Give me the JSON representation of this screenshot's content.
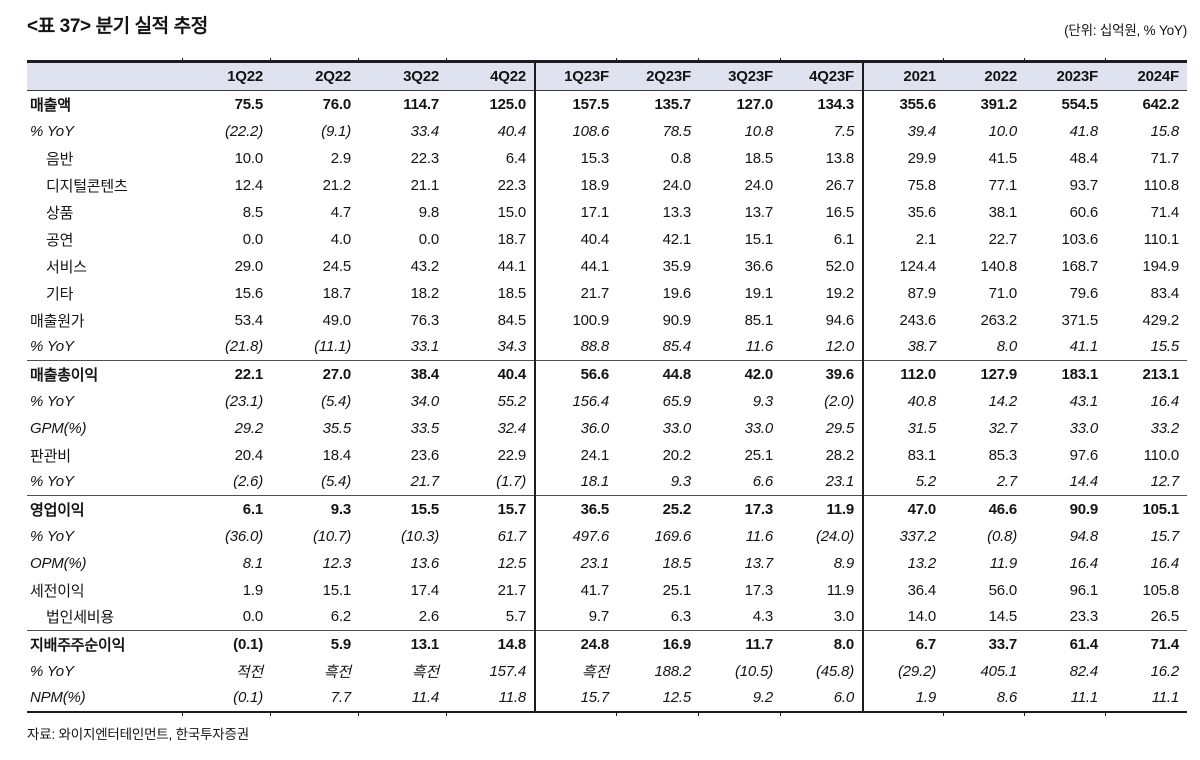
{
  "title": "<표 37> 분기 실적 추정",
  "unit_note": "(단위: 십억원, % YoY)",
  "source": "자료: 와이지엔터테인먼트, 한국투자증권",
  "colors": {
    "header_bg": "#dfe3f0",
    "rule_dark": "#1c1c1c",
    "rule_section": "#4f4f4f",
    "text": "#141414"
  },
  "table": {
    "columns": [
      "1Q22",
      "2Q22",
      "3Q22",
      "4Q22",
      "1Q23F",
      "2Q23F",
      "3Q23F",
      "4Q23F",
      "2021",
      "2022",
      "2023F",
      "2024F"
    ],
    "rows": [
      {
        "label": "매출액",
        "style": "bold",
        "section": false,
        "values": [
          "75.5",
          "76.0",
          "114.7",
          "125.0",
          "157.5",
          "135.7",
          "127.0",
          "134.3",
          "355.6",
          "391.2",
          "554.5",
          "642.2"
        ]
      },
      {
        "label": "% YoY",
        "style": "italic",
        "section": false,
        "values": [
          "(22.2)",
          "(9.1)",
          "33.4",
          "40.4",
          "108.6",
          "78.5",
          "10.8",
          "7.5",
          "39.4",
          "10.0",
          "41.8",
          "15.8"
        ]
      },
      {
        "label": "음반",
        "style": "sub",
        "section": false,
        "values": [
          "10.0",
          "2.9",
          "22.3",
          "6.4",
          "15.3",
          "0.8",
          "18.5",
          "13.8",
          "29.9",
          "41.5",
          "48.4",
          "71.7"
        ]
      },
      {
        "label": "디지털콘텐츠",
        "style": "sub",
        "section": false,
        "values": [
          "12.4",
          "21.2",
          "21.1",
          "22.3",
          "18.9",
          "24.0",
          "24.0",
          "26.7",
          "75.8",
          "77.1",
          "93.7",
          "110.8"
        ]
      },
      {
        "label": "상품",
        "style": "sub",
        "section": false,
        "values": [
          "8.5",
          "4.7",
          "9.8",
          "15.0",
          "17.1",
          "13.3",
          "13.7",
          "16.5",
          "35.6",
          "38.1",
          "60.6",
          "71.4"
        ]
      },
      {
        "label": "공연",
        "style": "sub",
        "section": false,
        "values": [
          "0.0",
          "4.0",
          "0.0",
          "18.7",
          "40.4",
          "42.1",
          "15.1",
          "6.1",
          "2.1",
          "22.7",
          "103.6",
          "110.1"
        ]
      },
      {
        "label": "서비스",
        "style": "sub",
        "section": false,
        "values": [
          "29.0",
          "24.5",
          "43.2",
          "44.1",
          "44.1",
          "35.9",
          "36.6",
          "52.0",
          "124.4",
          "140.8",
          "168.7",
          "194.9"
        ]
      },
      {
        "label": "기타",
        "style": "sub",
        "section": false,
        "values": [
          "15.6",
          "18.7",
          "18.2",
          "18.5",
          "21.7",
          "19.6",
          "19.1",
          "19.2",
          "87.9",
          "71.0",
          "79.6",
          "83.4"
        ]
      },
      {
        "label": "매출원가",
        "style": "normal",
        "section": false,
        "values": [
          "53.4",
          "49.0",
          "76.3",
          "84.5",
          "100.9",
          "90.9",
          "85.1",
          "94.6",
          "243.6",
          "263.2",
          "371.5",
          "429.2"
        ]
      },
      {
        "label": "% YoY",
        "style": "italic",
        "section": false,
        "values": [
          "(21.8)",
          "(11.1)",
          "33.1",
          "34.3",
          "88.8",
          "85.4",
          "11.6",
          "12.0",
          "38.7",
          "8.0",
          "41.1",
          "15.5"
        ]
      },
      {
        "label": "매출총이익",
        "style": "bold",
        "section": true,
        "values": [
          "22.1",
          "27.0",
          "38.4",
          "40.4",
          "56.6",
          "44.8",
          "42.0",
          "39.6",
          "112.0",
          "127.9",
          "183.1",
          "213.1"
        ]
      },
      {
        "label": "% YoY",
        "style": "italic",
        "section": false,
        "values": [
          "(23.1)",
          "(5.4)",
          "34.0",
          "55.2",
          "156.4",
          "65.9",
          "9.3",
          "(2.0)",
          "40.8",
          "14.2",
          "43.1",
          "16.4"
        ]
      },
      {
        "label": "GPM(%)",
        "style": "italic",
        "section": false,
        "values": [
          "29.2",
          "35.5",
          "33.5",
          "32.4",
          "36.0",
          "33.0",
          "33.0",
          "29.5",
          "31.5",
          "32.7",
          "33.0",
          "33.2"
        ]
      },
      {
        "label": "판관비",
        "style": "normal",
        "section": false,
        "values": [
          "20.4",
          "18.4",
          "23.6",
          "22.9",
          "24.1",
          "20.2",
          "25.1",
          "28.2",
          "83.1",
          "85.3",
          "97.6",
          "110.0"
        ]
      },
      {
        "label": "% YoY",
        "style": "italic",
        "section": false,
        "values": [
          "(2.6)",
          "(5.4)",
          "21.7",
          "(1.7)",
          "18.1",
          "9.3",
          "6.6",
          "23.1",
          "5.2",
          "2.7",
          "14.4",
          "12.7"
        ]
      },
      {
        "label": "영업이익",
        "style": "bold",
        "section": true,
        "values": [
          "6.1",
          "9.3",
          "15.5",
          "15.7",
          "36.5",
          "25.2",
          "17.3",
          "11.9",
          "47.0",
          "46.6",
          "90.9",
          "105.1"
        ]
      },
      {
        "label": "% YoY",
        "style": "italic",
        "section": false,
        "values": [
          "(36.0)",
          "(10.7)",
          "(10.3)",
          "61.7",
          "497.6",
          "169.6",
          "11.6",
          "(24.0)",
          "337.2",
          "(0.8)",
          "94.8",
          "15.7"
        ]
      },
      {
        "label": "OPM(%)",
        "style": "italic",
        "section": false,
        "values": [
          "8.1",
          "12.3",
          "13.6",
          "12.5",
          "23.1",
          "18.5",
          "13.7",
          "8.9",
          "13.2",
          "11.9",
          "16.4",
          "16.4"
        ]
      },
      {
        "label": "세전이익",
        "style": "normal",
        "section": false,
        "values": [
          "1.9",
          "15.1",
          "17.4",
          "21.7",
          "41.7",
          "25.1",
          "17.3",
          "11.9",
          "36.4",
          "56.0",
          "96.1",
          "105.8"
        ]
      },
      {
        "label": "법인세비용",
        "style": "sub",
        "section": false,
        "values": [
          "0.0",
          "6.2",
          "2.6",
          "5.7",
          "9.7",
          "6.3",
          "4.3",
          "3.0",
          "14.0",
          "14.5",
          "23.3",
          "26.5"
        ]
      },
      {
        "label": "지배주주순이익",
        "style": "bold",
        "section": true,
        "values": [
          "(0.1)",
          "5.9",
          "13.1",
          "14.8",
          "24.8",
          "16.9",
          "11.7",
          "8.0",
          "6.7",
          "33.7",
          "61.4",
          "71.4"
        ]
      },
      {
        "label": "% YoY",
        "style": "italic",
        "section": false,
        "values": [
          "적전",
          "흑전",
          "흑전",
          "157.4",
          "흑전",
          "188.2",
          "(10.5)",
          "(45.8)",
          "(29.2)",
          "405.1",
          "82.4",
          "16.2"
        ]
      },
      {
        "label": "NPM(%)",
        "style": "italic",
        "section": false,
        "values": [
          "(0.1)",
          "7.7",
          "11.4",
          "11.8",
          "15.7",
          "12.5",
          "9.2",
          "6.0",
          "1.9",
          "8.6",
          "11.1",
          "11.1"
        ]
      }
    ]
  }
}
